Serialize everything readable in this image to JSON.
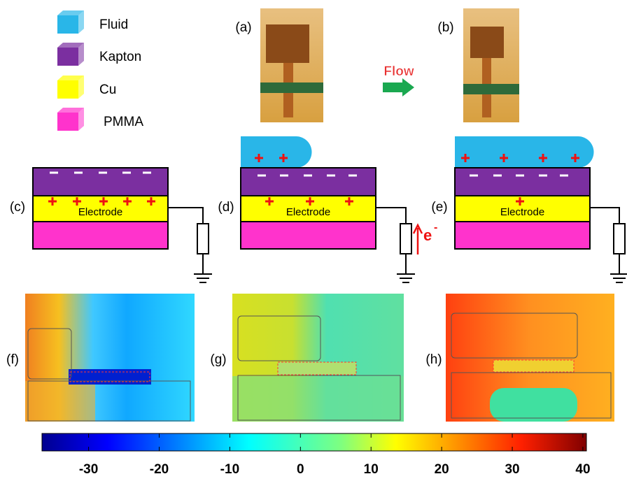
{
  "legend": [
    {
      "label": "Fluid",
      "color": "#29b6e8"
    },
    {
      "label": "Kapton",
      "color": "#7b2fa0"
    },
    {
      "label": "Cu",
      "color": "#ffff00"
    },
    {
      "label": "PMMA",
      "color": "#ff33cc"
    }
  ],
  "panels": {
    "a": "(a)",
    "b": "(b)",
    "c": "(c)",
    "d": "(d)",
    "e": "(e)",
    "f": "(f)",
    "g": "(g)",
    "h": "(h)"
  },
  "flow_label": "Flow",
  "electrode_labels": [
    "Electrode",
    "Electrode",
    "Electrode"
  ],
  "electron_label": {
    "base": "e",
    "sup": "-"
  },
  "colorbar": {
    "lim": [
      -36.6,
      40.5
    ],
    "ticks": [
      -30,
      -20,
      -10,
      0,
      10,
      20,
      30,
      40
    ]
  }
}
